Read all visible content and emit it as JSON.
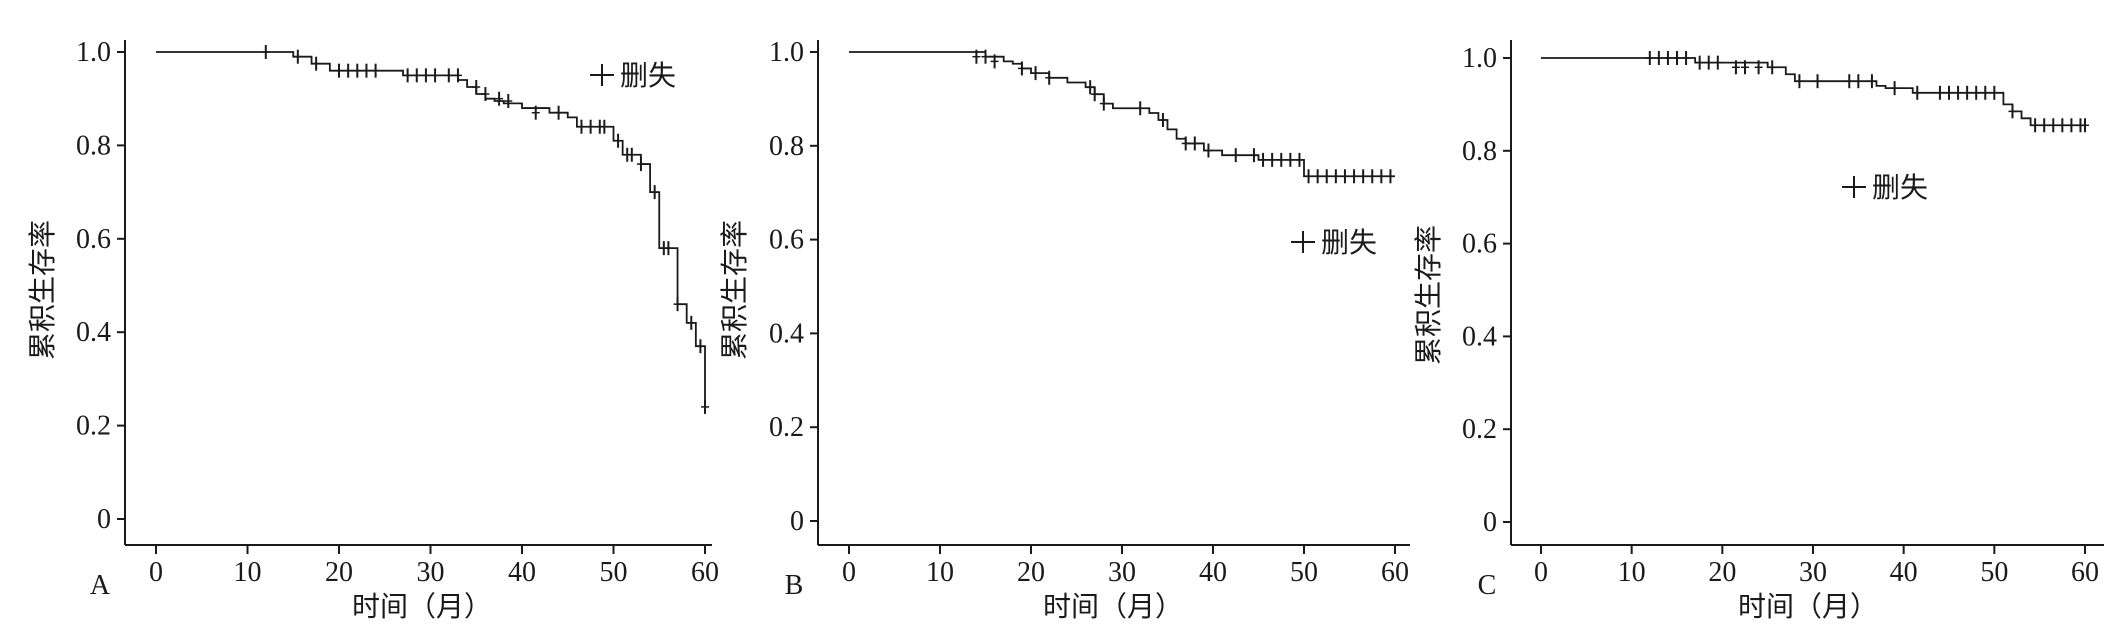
{
  "chart_data": [
    {
      "type": "line",
      "subtype": "kaplan-meier",
      "panel_label": "A",
      "xlabel": "时间（月）",
      "ylabel": "累积生存率",
      "xlim": [
        0,
        60
      ],
      "ylim": [
        0,
        1.0
      ],
      "x_ticks": [
        0,
        10,
        20,
        30,
        40,
        50,
        60
      ],
      "x_tick_labels": [
        "0",
        "10",
        "20",
        "30",
        "40",
        "50",
        "60"
      ],
      "y_ticks": [
        0,
        0.2,
        0.4,
        0.6,
        0.8,
        1.0
      ],
      "y_tick_labels": [
        "0",
        "0.2",
        "0.4",
        "0.6",
        "0.8",
        "1.0"
      ],
      "grid": false,
      "legend": {
        "position": "top-right",
        "entries": [
          {
            "marker": "+",
            "label": "删失"
          }
        ]
      },
      "series": [
        {
          "x": [
            0,
            12,
            15,
            17,
            19,
            27,
            33,
            34,
            35,
            36,
            37,
            38,
            40,
            43,
            45,
            46,
            50,
            51,
            53,
            54,
            55,
            57,
            58,
            59,
            60
          ],
          "y": [
            1.0,
            1.0,
            0.99,
            0.975,
            0.96,
            0.95,
            0.94,
            0.925,
            0.91,
            0.9,
            0.895,
            0.89,
            0.88,
            0.87,
            0.86,
            0.84,
            0.81,
            0.78,
            0.76,
            0.7,
            0.58,
            0.46,
            0.42,
            0.37,
            0.24
          ],
          "censored": [
            [
              12,
              1.0
            ],
            [
              15.5,
              0.99
            ],
            [
              17.5,
              0.975
            ],
            [
              20,
              0.96
            ],
            [
              21,
              0.96
            ],
            [
              22,
              0.96
            ],
            [
              23,
              0.96
            ],
            [
              24,
              0.96
            ],
            [
              27.5,
              0.95
            ],
            [
              28.5,
              0.95
            ],
            [
              29.5,
              0.95
            ],
            [
              30.5,
              0.95
            ],
            [
              32,
              0.95
            ],
            [
              33,
              0.95
            ],
            [
              35,
              0.925
            ],
            [
              36,
              0.91
            ],
            [
              37.5,
              0.9
            ],
            [
              38.5,
              0.895
            ],
            [
              41.5,
              0.87
            ],
            [
              44,
              0.87
            ],
            [
              46.5,
              0.84
            ],
            [
              47.5,
              0.84
            ],
            [
              48.5,
              0.84
            ],
            [
              49,
              0.84
            ],
            [
              50.5,
              0.81
            ],
            [
              51.5,
              0.78
            ],
            [
              52,
              0.78
            ],
            [
              53,
              0.76
            ],
            [
              54.5,
              0.7
            ],
            [
              55.5,
              0.58
            ],
            [
              56,
              0.58
            ],
            [
              57,
              0.46
            ],
            [
              58.5,
              0.42
            ],
            [
              59.5,
              0.37
            ],
            [
              60,
              0.24
            ]
          ]
        }
      ]
    },
    {
      "type": "line",
      "subtype": "kaplan-meier",
      "panel_label": "B",
      "xlabel": "时间（月）",
      "ylabel": "累积生存率",
      "xlim": [
        0,
        60
      ],
      "ylim": [
        0,
        1.0
      ],
      "x_ticks": [
        0,
        10,
        20,
        30,
        40,
        50,
        60
      ],
      "x_tick_labels": [
        "0",
        "10",
        "20",
        "30",
        "40",
        "50",
        "60"
      ],
      "y_ticks": [
        0,
        0.2,
        0.4,
        0.6,
        0.8,
        1.0
      ],
      "y_tick_labels": [
        "0",
        "0.2",
        "0.4",
        "0.6",
        "0.8",
        "1.0"
      ],
      "grid": false,
      "legend": {
        "position": "right",
        "entries": [
          {
            "marker": "+",
            "label": "删失"
          }
        ]
      },
      "series": [
        {
          "x": [
            0,
            12,
            15,
            17,
            18,
            19,
            20,
            22,
            24,
            26,
            27,
            28,
            29,
            33,
            34,
            35,
            36,
            37,
            39,
            41,
            45,
            50,
            60
          ],
          "y": [
            1.0,
            1.0,
            0.99,
            0.98,
            0.975,
            0.965,
            0.955,
            0.945,
            0.935,
            0.925,
            0.91,
            0.89,
            0.88,
            0.87,
            0.855,
            0.835,
            0.815,
            0.805,
            0.79,
            0.78,
            0.77,
            0.735,
            0.735
          ],
          "censored": [
            [
              14,
              0.99
            ],
            [
              15,
              0.99
            ],
            [
              16,
              0.98
            ],
            [
              19,
              0.965
            ],
            [
              20.5,
              0.955
            ],
            [
              22,
              0.945
            ],
            [
              26.5,
              0.925
            ],
            [
              27,
              0.91
            ],
            [
              28,
              0.89
            ],
            [
              32,
              0.88
            ],
            [
              34.5,
              0.855
            ],
            [
              37,
              0.805
            ],
            [
              38,
              0.805
            ],
            [
              39.5,
              0.79
            ],
            [
              42.5,
              0.78
            ],
            [
              44.5,
              0.78
            ],
            [
              45.5,
              0.77
            ],
            [
              46.5,
              0.77
            ],
            [
              47.5,
              0.77
            ],
            [
              48.5,
              0.77
            ],
            [
              49.5,
              0.77
            ],
            [
              50.5,
              0.735
            ],
            [
              51.5,
              0.735
            ],
            [
              52.5,
              0.735
            ],
            [
              53.5,
              0.735
            ],
            [
              54.5,
              0.735
            ],
            [
              55.5,
              0.735
            ],
            [
              56.5,
              0.735
            ],
            [
              57.5,
              0.735
            ],
            [
              58.5,
              0.735
            ],
            [
              59.5,
              0.735
            ]
          ]
        }
      ]
    },
    {
      "type": "line",
      "subtype": "kaplan-meier",
      "panel_label": "C",
      "xlabel": "时间（月）",
      "ylabel": "累积生存率",
      "xlim": [
        0,
        60
      ],
      "ylim": [
        0,
        1.0
      ],
      "x_ticks": [
        0,
        10,
        20,
        30,
        40,
        50,
        60
      ],
      "x_tick_labels": [
        "0",
        "10",
        "20",
        "30",
        "40",
        "50",
        "60"
      ],
      "y_ticks": [
        0,
        0.2,
        0.4,
        0.6,
        0.8,
        1.0
      ],
      "y_tick_labels": [
        "0",
        "0.2",
        "0.4",
        "0.6",
        "0.8",
        "1.0"
      ],
      "grid": false,
      "legend": {
        "position": "right",
        "entries": [
          {
            "marker": "+",
            "label": "删失"
          }
        ]
      },
      "series": [
        {
          "x": [
            0,
            12,
            17,
            25,
            27,
            28,
            35,
            37,
            38,
            41,
            51,
            52,
            53,
            54,
            60
          ],
          "y": [
            1.0,
            1.0,
            0.99,
            0.98,
            0.965,
            0.95,
            0.95,
            0.94,
            0.935,
            0.925,
            0.9,
            0.885,
            0.87,
            0.855,
            0.855
          ],
          "censored": [
            [
              12,
              1.0
            ],
            [
              13,
              1.0
            ],
            [
              14,
              1.0
            ],
            [
              15,
              1.0
            ],
            [
              16,
              1.0
            ],
            [
              17.5,
              0.99
            ],
            [
              18.5,
              0.99
            ],
            [
              19.5,
              0.99
            ],
            [
              21.5,
              0.98
            ],
            [
              22.5,
              0.98
            ],
            [
              24,
              0.98
            ],
            [
              25.5,
              0.98
            ],
            [
              28.5,
              0.95
            ],
            [
              30.5,
              0.95
            ],
            [
              34,
              0.95
            ],
            [
              35,
              0.95
            ],
            [
              36.5,
              0.95
            ],
            [
              39,
              0.935
            ],
            [
              41.5,
              0.925
            ],
            [
              44,
              0.925
            ],
            [
              45,
              0.925
            ],
            [
              46,
              0.925
            ],
            [
              47,
              0.925
            ],
            [
              48,
              0.925
            ],
            [
              49,
              0.925
            ],
            [
              50,
              0.925
            ],
            [
              52,
              0.885
            ],
            [
              54.5,
              0.855
            ],
            [
              55.5,
              0.855
            ],
            [
              56.5,
              0.855
            ],
            [
              57.5,
              0.855
            ],
            [
              58.5,
              0.855
            ],
            [
              59.5,
              0.855
            ],
            [
              60,
              0.855
            ]
          ]
        }
      ]
    }
  ]
}
